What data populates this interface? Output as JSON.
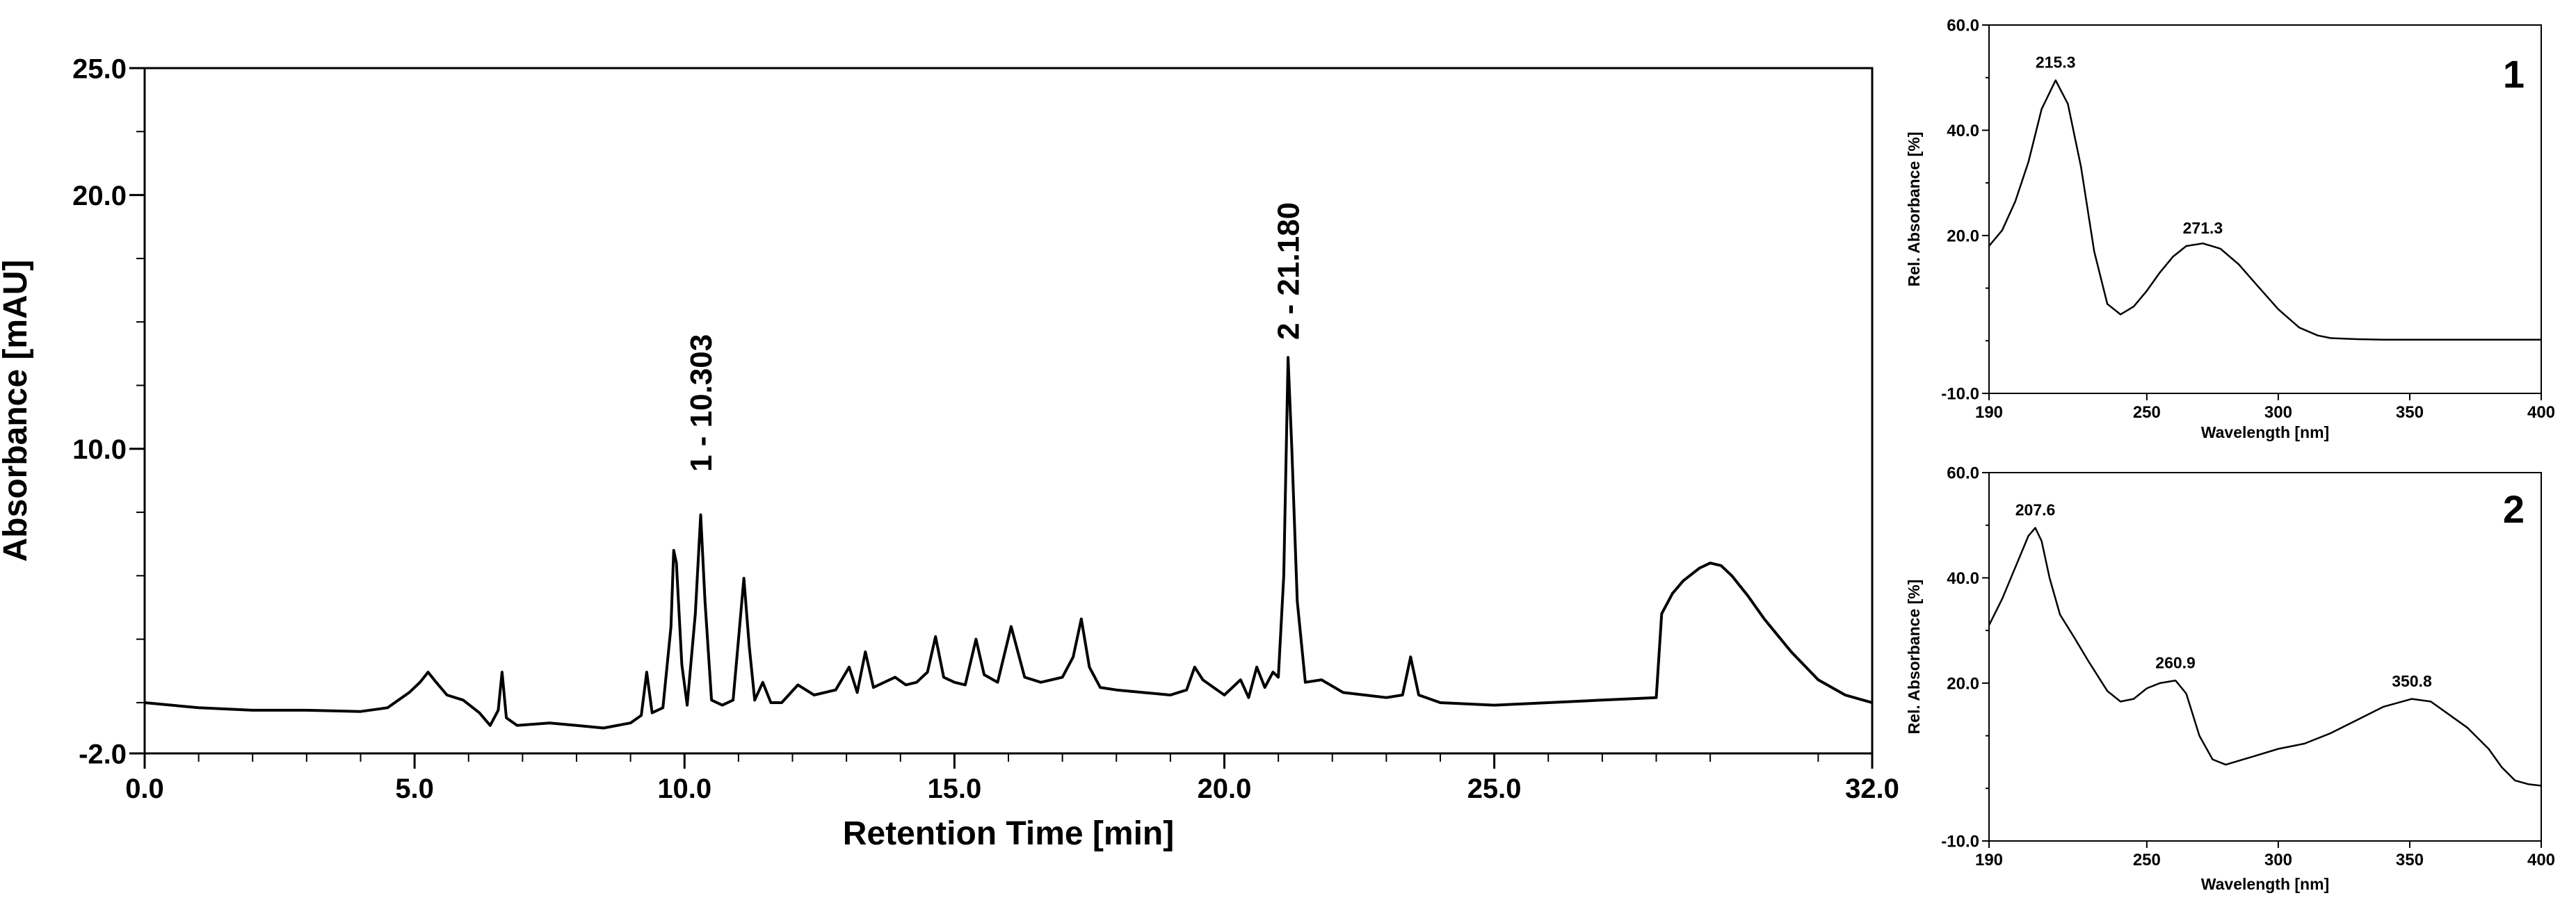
{
  "chart_data": [
    {
      "type": "line",
      "xlabel": "Retention Time [min]",
      "ylabel": "Absorbance [mAU]",
      "xlim": [
        0,
        32
      ],
      "ylim": [
        -2,
        25
      ],
      "x_ticks": [
        {
          "value": 0,
          "label": "0.0"
        },
        {
          "value": 5,
          "label": "5.0"
        },
        {
          "value": 10,
          "label": "10.0"
        },
        {
          "value": 15,
          "label": "15.0"
        },
        {
          "value": 20,
          "label": "20.0"
        },
        {
          "value": 25,
          "label": "25.0"
        },
        {
          "value": 32,
          "label": "32.0"
        }
      ],
      "y_ticks": [
        {
          "value": -2,
          "label": "-2.0"
        },
        {
          "value": 10,
          "label": "10.0"
        },
        {
          "value": 20,
          "label": "20.0"
        },
        {
          "value": 25,
          "label": "25.0"
        }
      ],
      "annotations": [
        {
          "x": 10.303,
          "y": 8.6,
          "text": "1 - 10.303"
        },
        {
          "x": 21.18,
          "y": 13.8,
          "text": "2 - 21.180"
        }
      ],
      "series": [
        {
          "color": "#000000",
          "points": [
            [
              0.0,
              0.0
            ],
            [
              1.0,
              -0.2
            ],
            [
              2.0,
              -0.3
            ],
            [
              3.0,
              -0.3
            ],
            [
              4.0,
              -0.35
            ],
            [
              4.5,
              -0.2
            ],
            [
              4.9,
              0.4
            ],
            [
              5.1,
              0.8
            ],
            [
              5.25,
              1.2
            ],
            [
              5.4,
              0.8
            ],
            [
              5.6,
              0.3
            ],
            [
              5.9,
              0.1
            ],
            [
              6.2,
              -0.4
            ],
            [
              6.4,
              -0.9
            ],
            [
              6.55,
              -0.3
            ],
            [
              6.62,
              1.2
            ],
            [
              6.7,
              -0.6
            ],
            [
              6.9,
              -0.9
            ],
            [
              7.5,
              -0.8
            ],
            [
              8.0,
              -0.9
            ],
            [
              8.5,
              -1.0
            ],
            [
              9.0,
              -0.8
            ],
            [
              9.2,
              -0.5
            ],
            [
              9.3,
              1.2
            ],
            [
              9.4,
              -0.4
            ],
            [
              9.6,
              -0.2
            ],
            [
              9.75,
              3.0
            ],
            [
              9.8,
              6.0
            ],
            [
              9.85,
              5.5
            ],
            [
              9.95,
              1.5
            ],
            [
              10.05,
              -0.1
            ],
            [
              10.2,
              3.5
            ],
            [
              10.3,
              7.4
            ],
            [
              10.38,
              4.0
            ],
            [
              10.5,
              0.1
            ],
            [
              10.7,
              -0.1
            ],
            [
              10.9,
              0.1
            ],
            [
              11.0,
              2.5
            ],
            [
              11.1,
              4.9
            ],
            [
              11.2,
              2.2
            ],
            [
              11.3,
              0.1
            ],
            [
              11.45,
              0.8
            ],
            [
              11.6,
              0.0
            ],
            [
              11.8,
              0.0
            ],
            [
              12.1,
              0.7
            ],
            [
              12.4,
              0.3
            ],
            [
              12.8,
              0.5
            ],
            [
              13.05,
              1.4
            ],
            [
              13.2,
              0.4
            ],
            [
              13.35,
              2.0
            ],
            [
              13.5,
              0.6
            ],
            [
              13.7,
              0.8
            ],
            [
              13.9,
              1.0
            ],
            [
              14.1,
              0.7
            ],
            [
              14.3,
              0.8
            ],
            [
              14.5,
              1.2
            ],
            [
              14.65,
              2.6
            ],
            [
              14.8,
              1.0
            ],
            [
              15.0,
              0.8
            ],
            [
              15.2,
              0.7
            ],
            [
              15.4,
              2.5
            ],
            [
              15.55,
              1.1
            ],
            [
              15.8,
              0.8
            ],
            [
              16.05,
              3.0
            ],
            [
              16.3,
              1.0
            ],
            [
              16.6,
              0.8
            ],
            [
              17.0,
              1.0
            ],
            [
              17.2,
              1.8
            ],
            [
              17.35,
              3.3
            ],
            [
              17.5,
              1.4
            ],
            [
              17.7,
              0.6
            ],
            [
              18.0,
              0.5
            ],
            [
              18.5,
              0.4
            ],
            [
              19.0,
              0.3
            ],
            [
              19.3,
              0.5
            ],
            [
              19.45,
              1.4
            ],
            [
              19.6,
              0.9
            ],
            [
              19.8,
              0.6
            ],
            [
              20.0,
              0.3
            ],
            [
              20.3,
              0.9
            ],
            [
              20.45,
              0.2
            ],
            [
              20.6,
              1.4
            ],
            [
              20.75,
              0.6
            ],
            [
              20.9,
              1.2
            ],
            [
              21.0,
              1.0
            ],
            [
              21.1,
              5.0
            ],
            [
              21.18,
              13.6
            ],
            [
              21.25,
              10.0
            ],
            [
              21.35,
              4.0
            ],
            [
              21.5,
              0.8
            ],
            [
              21.8,
              0.9
            ],
            [
              22.2,
              0.4
            ],
            [
              22.6,
              0.3
            ],
            [
              23.0,
              0.2
            ],
            [
              23.3,
              0.3
            ],
            [
              23.45,
              1.8
            ],
            [
              23.6,
              0.3
            ],
            [
              24.0,
              0.0
            ],
            [
              25.0,
              -0.1
            ],
            [
              26.0,
              0.0
            ],
            [
              27.0,
              0.1
            ],
            [
              28.0,
              0.2
            ],
            [
              28.1,
              3.5
            ],
            [
              28.3,
              4.3
            ],
            [
              28.5,
              4.8
            ],
            [
              28.8,
              5.3
            ],
            [
              29.0,
              5.5
            ],
            [
              29.2,
              5.4
            ],
            [
              29.4,
              5.0
            ],
            [
              29.7,
              4.2
            ],
            [
              30.0,
              3.3
            ],
            [
              30.5,
              2.0
            ],
            [
              31.0,
              0.9
            ],
            [
              31.5,
              0.3
            ],
            [
              32.0,
              0.0
            ]
          ]
        }
      ]
    },
    {
      "type": "line",
      "panel_label": "1",
      "xlabel": "Wavelength [nm]",
      "ylabel": "Rel. Absorbance [%]",
      "xlim": [
        190,
        400
      ],
      "ylim": [
        -10,
        60
      ],
      "x_ticks": [
        {
          "value": 190,
          "label": "190"
        },
        {
          "value": 250,
          "label": "250"
        },
        {
          "value": 300,
          "label": "300"
        },
        {
          "value": 350,
          "label": "350"
        },
        {
          "value": 400,
          "label": "400"
        }
      ],
      "y_ticks": [
        {
          "value": -10,
          "label": "-10.0"
        },
        {
          "value": 20,
          "label": "20.0"
        },
        {
          "value": 40,
          "label": "40.0"
        },
        {
          "value": 60,
          "label": "60.0"
        }
      ],
      "annotations": [
        {
          "x": 215.3,
          "y": 50,
          "text": "215.3"
        },
        {
          "x": 271.3,
          "y": 18.5,
          "text": "271.3"
        }
      ],
      "series": [
        {
          "color": "#000000",
          "points": [
            [
              190,
              18.0
            ],
            [
              195,
              21.0
            ],
            [
              200,
              26.5
            ],
            [
              205,
              34.0
            ],
            [
              210,
              44.0
            ],
            [
              215.3,
              49.5
            ],
            [
              220,
              45.0
            ],
            [
              225,
              33.0
            ],
            [
              230,
              17.0
            ],
            [
              235,
              7.0
            ],
            [
              240,
              5.0
            ],
            [
              245,
              6.5
            ],
            [
              250,
              9.5
            ],
            [
              255,
              13.0
            ],
            [
              260,
              16.0
            ],
            [
              265,
              18.0
            ],
            [
              271.3,
              18.5
            ],
            [
              278,
              17.5
            ],
            [
              285,
              14.5
            ],
            [
              292,
              10.5
            ],
            [
              300,
              6.0
            ],
            [
              308,
              2.5
            ],
            [
              315,
              1.0
            ],
            [
              320,
              0.5
            ],
            [
              330,
              0.3
            ],
            [
              340,
              0.2
            ],
            [
              350,
              0.2
            ],
            [
              370,
              0.2
            ],
            [
              400,
              0.2
            ]
          ]
        }
      ]
    },
    {
      "type": "line",
      "panel_label": "2",
      "xlabel": "Wavelength [nm]",
      "ylabel": "Rel. Absorbance [%]",
      "xlim": [
        190,
        400
      ],
      "ylim": [
        -10,
        60
      ],
      "x_ticks": [
        {
          "value": 190,
          "label": "190"
        },
        {
          "value": 250,
          "label": "250"
        },
        {
          "value": 300,
          "label": "300"
        },
        {
          "value": 350,
          "label": "350"
        },
        {
          "value": 400,
          "label": "400"
        }
      ],
      "y_ticks": [
        {
          "value": -10,
          "label": "-10.0"
        },
        {
          "value": 20,
          "label": "20.0"
        },
        {
          "value": 40,
          "label": "40.0"
        },
        {
          "value": 60,
          "label": "60.0"
        }
      ],
      "annotations": [
        {
          "x": 207.6,
          "y": 50,
          "text": "207.6"
        },
        {
          "x": 260.9,
          "y": 21,
          "text": "260.9"
        },
        {
          "x": 350.8,
          "y": 17.5,
          "text": "350.8"
        }
      ],
      "series": [
        {
          "color": "#000000",
          "points": [
            [
              190,
              31.0
            ],
            [
              195,
              36.0
            ],
            [
              200,
              42.0
            ],
            [
              205,
              48.0
            ],
            [
              207.6,
              49.5
            ],
            [
              210,
              47.0
            ],
            [
              213,
              40.0
            ],
            [
              217,
              33.0
            ],
            [
              222,
              29.0
            ],
            [
              228,
              24.0
            ],
            [
              235,
              18.5
            ],
            [
              240,
              16.5
            ],
            [
              245,
              17.0
            ],
            [
              250,
              19.0
            ],
            [
              255,
              20.0
            ],
            [
              260.9,
              20.5
            ],
            [
              265,
              18.0
            ],
            [
              270,
              10.0
            ],
            [
              275,
              5.5
            ],
            [
              280,
              4.5
            ],
            [
              290,
              6.0
            ],
            [
              300,
              7.5
            ],
            [
              310,
              8.5
            ],
            [
              320,
              10.5
            ],
            [
              330,
              13.0
            ],
            [
              340,
              15.5
            ],
            [
              350.8,
              17.0
            ],
            [
              358,
              16.5
            ],
            [
              365,
              14.0
            ],
            [
              372,
              11.5
            ],
            [
              380,
              7.5
            ],
            [
              385,
              4.0
            ],
            [
              390,
              1.5
            ],
            [
              395,
              0.8
            ],
            [
              400,
              0.5
            ]
          ]
        }
      ]
    }
  ]
}
